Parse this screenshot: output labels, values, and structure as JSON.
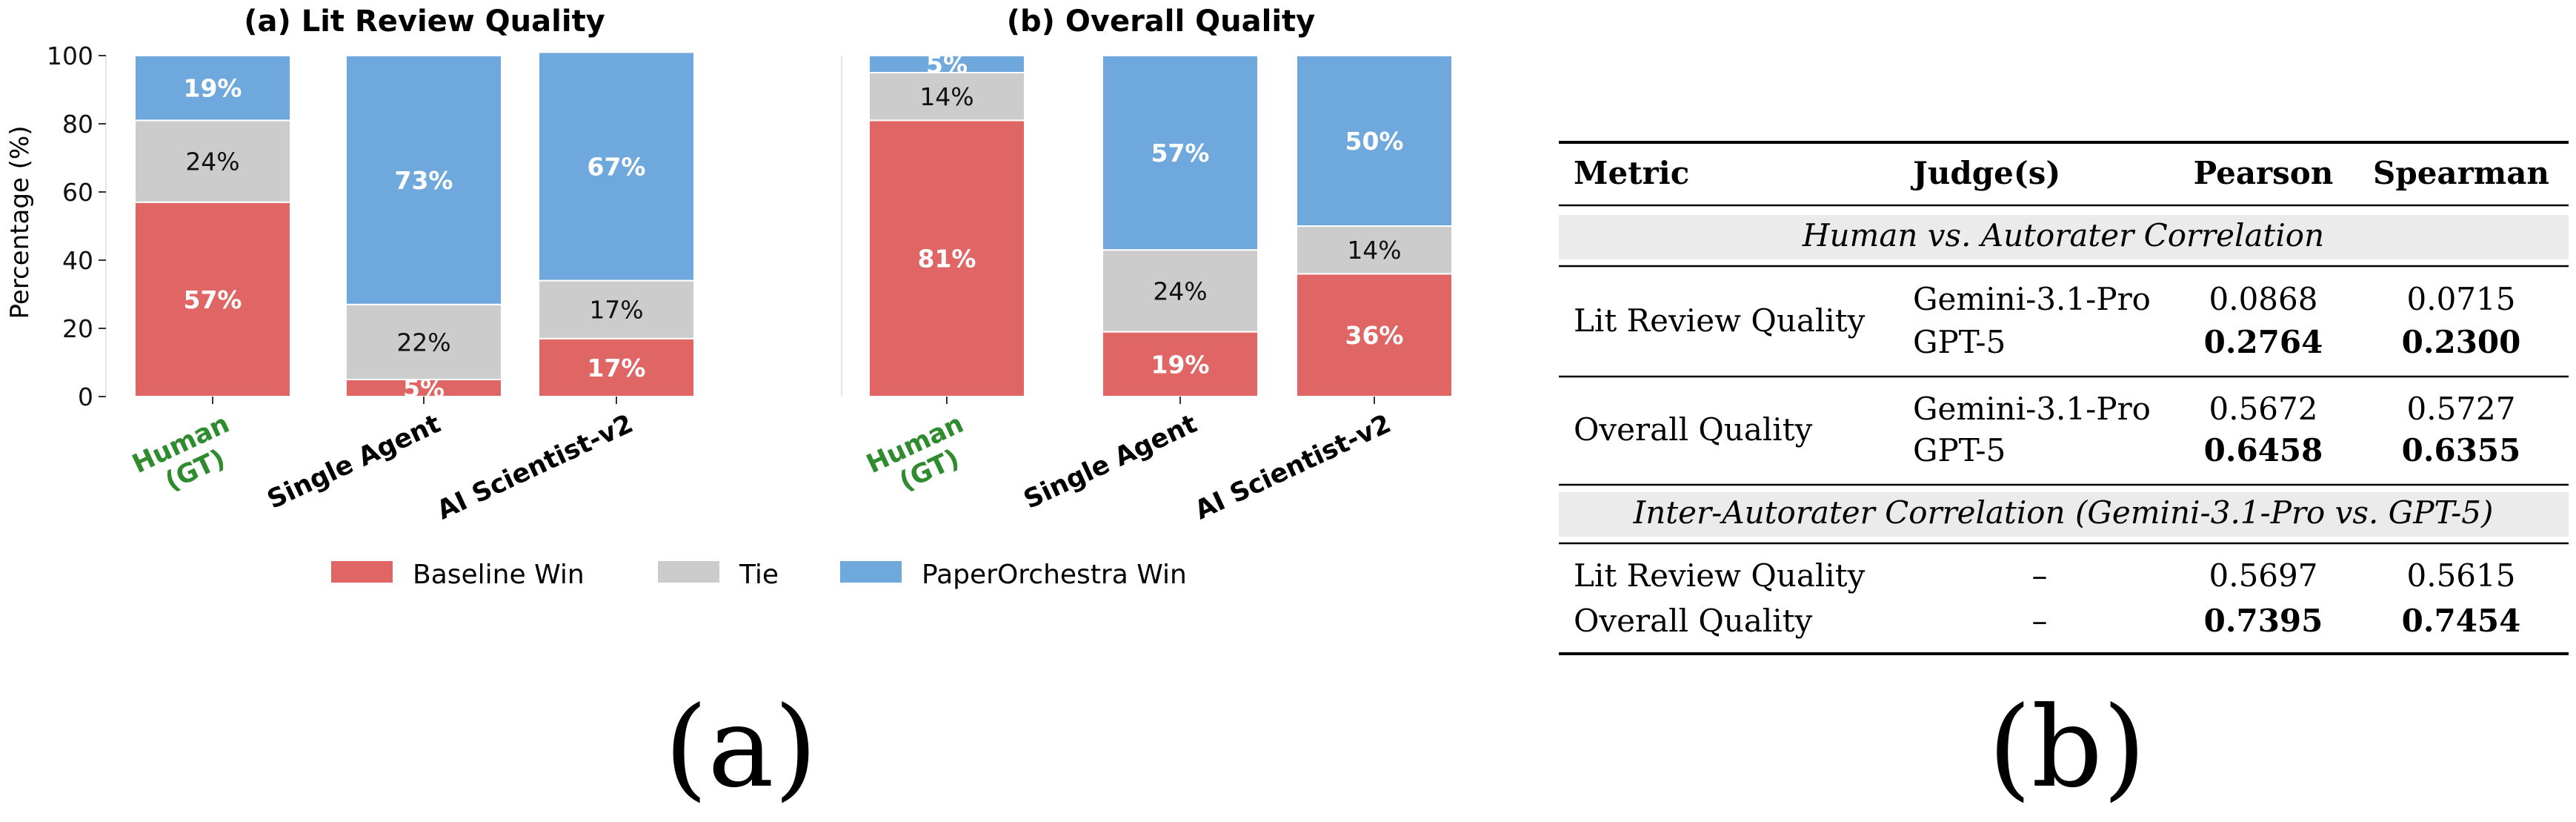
{
  "chart_data": [
    {
      "type": "bar",
      "stacked": true,
      "title": "(a) Lit Review Quality",
      "ylabel": "Percentage (%)",
      "ylim": [
        0,
        100
      ],
      "yticks": [
        "0",
        "20",
        "40",
        "60",
        "80",
        "100"
      ],
      "categories": [
        "Human\n(GT)",
        "Single Agent",
        "AI Scientist-v2"
      ],
      "highlight_category": "Human\n(GT)",
      "series": [
        {
          "name": "Baseline Win",
          "values": [
            57,
            5,
            17
          ],
          "labels": [
            "57%",
            "5%",
            "17%"
          ]
        },
        {
          "name": "Tie",
          "values": [
            24,
            22,
            17
          ],
          "labels": [
            "24%",
            "22%",
            "17%"
          ]
        },
        {
          "name": "PaperOrchestra Win",
          "values": [
            19,
            73,
            67
          ],
          "labels": [
            "19%",
            "73%",
            "67%"
          ]
        }
      ],
      "grid": false,
      "legend": "bottom"
    },
    {
      "type": "bar",
      "stacked": true,
      "title": "(b) Overall Quality",
      "ylabel": "",
      "ylim": [
        0,
        100
      ],
      "categories": [
        "Human\n(GT)",
        "Single Agent",
        "AI Scientist-v2"
      ],
      "highlight_category": "Human\n(GT)",
      "series": [
        {
          "name": "Baseline Win",
          "values": [
            81,
            19,
            36
          ],
          "labels": [
            "81%",
            "19%",
            "36%"
          ]
        },
        {
          "name": "Tie",
          "values": [
            14,
            24,
            14
          ],
          "labels": [
            "14%",
            "24%",
            "14%"
          ]
        },
        {
          "name": "PaperOrchestra Win",
          "values": [
            5,
            57,
            50
          ],
          "labels": [
            "5%",
            "57%",
            "50%"
          ]
        }
      ],
      "grid": false,
      "legend": "bottom"
    },
    {
      "type": "table",
      "columns": [
        "Metric",
        "Judge(s)",
        "Pearson",
        "Spearman"
      ],
      "sections": [
        {
          "header": "Human vs. Autorater Correlation",
          "groups": [
            {
              "metric": "Lit Review Quality",
              "rows": [
                {
                  "judge": "Gemini-3.1-Pro",
                  "pearson": "0.0868",
                  "spearman": "0.0715",
                  "bold": false
                },
                {
                  "judge": "GPT-5",
                  "pearson": "0.2764",
                  "spearman": "0.2300",
                  "bold": true
                }
              ]
            },
            {
              "metric": "Overall Quality",
              "rows": [
                {
                  "judge": "Gemini-3.1-Pro",
                  "pearson": "0.5672",
                  "spearman": "0.5727",
                  "bold": false
                },
                {
                  "judge": "GPT-5",
                  "pearson": "0.6458",
                  "spearman": "0.6355",
                  "bold": true
                }
              ]
            }
          ]
        },
        {
          "header": "Inter-Autorater Correlation (Gemini-3.1-Pro vs. GPT-5)",
          "groups": [
            {
              "metric": "Lit Review Quality",
              "rows": [
                {
                  "judge": "–",
                  "pearson": "0.5697",
                  "spearman": "0.5615",
                  "bold": false
                }
              ]
            },
            {
              "metric": "Overall Quality",
              "rows": [
                {
                  "judge": "–",
                  "pearson": "0.7395",
                  "spearman": "0.7454",
                  "bold": true
                }
              ]
            }
          ]
        }
      ]
    }
  ],
  "legend": {
    "items": [
      {
        "name": "Baseline Win",
        "color": "#e06666"
      },
      {
        "name": "Tie",
        "color": "#cccccc"
      },
      {
        "name": "PaperOrchestra Win",
        "color": "#6fa8dc"
      }
    ]
  },
  "colors": {
    "baseline": "#e06666",
    "tie": "#cccccc",
    "paperorchestra": "#6fa8dc",
    "highlight_label": "#2e8b2e",
    "section_header_bg": "#ebebeb"
  },
  "captions": {
    "left": "(a)",
    "right": "(b)"
  }
}
